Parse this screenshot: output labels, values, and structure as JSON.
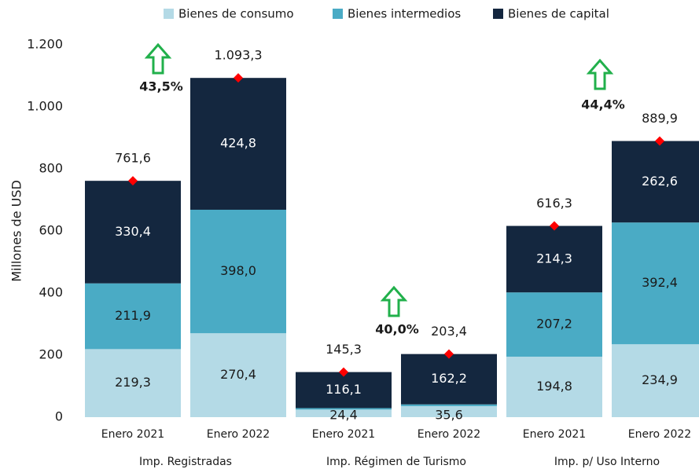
{
  "chart_data": {
    "type": "stacked-bar",
    "y_label": "Millones de USD",
    "categories": [
      "Enero 2021",
      "Enero 2022",
      "Enero 2021",
      "Enero 2022",
      "Enero 2021",
      "Enero 2022"
    ],
    "groups": [
      "Imp. Registradas",
      "Imp. Régimen de Turismo",
      "Imp. p/ Uso Interno"
    ],
    "series": [
      {
        "name": "Bienes de consumo",
        "color": "#b4dae6",
        "label_color": "#1a1a1a",
        "values": [
          219.3,
          270.4,
          24.4,
          35.6,
          194.8,
          234.9
        ],
        "value_labels": [
          "219,3",
          "270,4",
          "24,4",
          "35,6",
          "194,8",
          "234,9"
        ]
      },
      {
        "name": "Bienes intermedios",
        "color": "#4aabc5",
        "label_color": "#1a1a1a",
        "values": [
          211.9,
          398.0,
          4.8,
          5.6,
          207.2,
          392.4
        ],
        "value_labels": [
          "211,9",
          "398,0",
          null,
          null,
          "207,2",
          "392,4"
        ]
      },
      {
        "name": "Bienes de capital",
        "color": "#14273f",
        "label_color": "#ffffff",
        "values": [
          330.4,
          424.8,
          116.1,
          162.2,
          214.3,
          262.6
        ],
        "value_labels": [
          "330,4",
          "424,8",
          "116,1",
          "162,2",
          "214,3",
          "262,6"
        ]
      }
    ],
    "totals": {
      "color": "#ff0000",
      "values": [
        761.6,
        1093.3,
        145.3,
        203.4,
        616.3,
        889.9
      ],
      "value_labels": [
        "761,6",
        "1.093,3",
        "145,3",
        "203,4",
        "616,3",
        "889,9"
      ]
    },
    "annotations": [
      "43,5%",
      "40,0%",
      "44,4%"
    ],
    "annotation_color": "#21b04b",
    "ylim": [
      0,
      1200
    ],
    "yticks": [
      0,
      200,
      400,
      600,
      800,
      {
        "value": 1000,
        "label": "1.000"
      },
      {
        "value": 1200,
        "label": "1.200"
      }
    ],
    "grid": false,
    "legend": "top"
  }
}
